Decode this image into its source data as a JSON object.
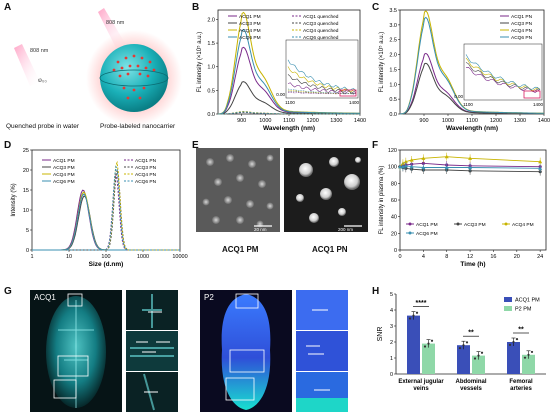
{
  "panel_letters": {
    "a": "A",
    "b": "B",
    "c": "C",
    "d": "D",
    "e": "E",
    "f": "F",
    "g": "G",
    "h": "H"
  },
  "panelA": {
    "laser1": "808 nm",
    "laser2": "808 nm",
    "molecules": "ⱷ₀₀",
    "caption_left": "Quenched probe in water",
    "caption_right": "Probe-labeled nanocarrier"
  },
  "colors": {
    "acq1": "#7a2a8a",
    "acq3": "#444444",
    "acq4": "#c8b400",
    "acq6": "#3a8fb0",
    "acq1_pn": "#9b5bb0",
    "pink_box": "#d81b60",
    "bar_acq1": "#3a4fb8",
    "bar_p2": "#8fd8a8",
    "sphere": "#1ab0b8"
  },
  "fl_axis": {
    "ylabel": "FL intensity (×10⁵ a.u.)",
    "xlabel": "Wavelength (nm)"
  },
  "chart_data": [
    {
      "panel": "B",
      "type": "line",
      "xlabel": "Wavelength (nm)",
      "ylabel": "FL intensity (×10⁵ a.u.)",
      "xlim": [
        800,
        1400
      ],
      "ylim": [
        0,
        2.2
      ],
      "xticks": [
        900,
        1000,
        1100,
        1200,
        1300,
        1400
      ],
      "yticks": [
        0.0,
        0.5,
        1.0,
        1.5,
        2.0
      ],
      "inset": {
        "xticks": [
          1100,
          1400
        ],
        "ytick": "0.00"
      },
      "series": [
        {
          "name": "ACQ1 PM",
          "peak": 1.28
        },
        {
          "name": "ACQ3 PM",
          "peak": 0.62
        },
        {
          "name": "ACQ4 PM",
          "peak": 1.95
        },
        {
          "name": "ACQ6 PM",
          "peak": 1.62
        },
        {
          "name": "ACQ1 quenched",
          "peak": 0.04
        },
        {
          "name": "ACQ3 quenched",
          "peak": 0.03
        },
        {
          "name": "ACQ4 quenched",
          "peak": 0.05
        },
        {
          "name": "ACQ6 quenched",
          "peak": 0.04
        }
      ]
    },
    {
      "panel": "C",
      "type": "line",
      "xlabel": "Wavelength (nm)",
      "ylabel": "FL intensity (×10⁵ a.u.)",
      "xlim": [
        800,
        1400
      ],
      "ylim": [
        0,
        3.5
      ],
      "xticks": [
        900,
        1000,
        1100,
        1200,
        1300,
        1400
      ],
      "yticks": [
        0.0,
        0.5,
        1.0,
        1.5,
        2.0,
        2.5,
        3.0,
        3.5
      ],
      "inset": {
        "xticks": [
          1100,
          1400
        ],
        "ytick": "0.00"
      },
      "series": [
        {
          "name": "ACQ1 PN",
          "peak": 1.85
        },
        {
          "name": "ACQ3 PN",
          "peak": 1.55
        },
        {
          "name": "ACQ4 PN",
          "peak": 3.15
        },
        {
          "name": "ACQ6 PN",
          "peak": 2.95
        }
      ]
    },
    {
      "panel": "D",
      "type": "line",
      "xlabel": "Size (d.nm)",
      "ylabel": "Intensity (%)",
      "xscale": "log",
      "xlim": [
        1,
        10000
      ],
      "ylim": [
        0,
        25
      ],
      "xticks": [
        "1",
        "10",
        "100",
        "1000",
        "10000"
      ],
      "yticks": [
        0,
        5,
        10,
        15,
        20,
        25
      ],
      "series": [
        {
          "name": "ACQ1 PM",
          "peak_x": 24,
          "peak_y": 15
        },
        {
          "name": "ACQ3 PM",
          "peak_x": 26,
          "peak_y": 13.5
        },
        {
          "name": "ACQ4 PM",
          "peak_x": 25,
          "peak_y": 14.5
        },
        {
          "name": "ACQ6 PM",
          "peak_x": 25,
          "peak_y": 14
        },
        {
          "name": "ACQ1 PN",
          "peak_x": 185,
          "peak_y": 19
        },
        {
          "name": "ACQ3 PN",
          "peak_x": 200,
          "peak_y": 20
        },
        {
          "name": "ACQ4 PN",
          "peak_x": 195,
          "peak_y": 22
        },
        {
          "name": "ACQ6 PN",
          "peak_x": 190,
          "peak_y": 21
        }
      ]
    },
    {
      "panel": "F",
      "type": "line",
      "xlabel": "Time (h)",
      "ylabel": "FL intensity in plasma (%)",
      "xlim": [
        0,
        25
      ],
      "ylim": [
        0,
        120
      ],
      "xticks": [
        0,
        4,
        8,
        12,
        16,
        20,
        24
      ],
      "yticks": [
        0,
        20,
        40,
        60,
        80,
        100,
        120
      ],
      "x": [
        0,
        0.5,
        1,
        2,
        4,
        8,
        12,
        24
      ],
      "series": [
        {
          "name": "ACQ1 PM",
          "values": [
            100,
            101,
            102,
            103,
            104,
            102,
            101,
            100
          ]
        },
        {
          "name": "ACQ3 PM",
          "values": [
            100,
            99,
            98,
            97,
            96,
            96,
            95,
            94
          ]
        },
        {
          "name": "ACQ4 PM",
          "values": [
            100,
            104,
            106,
            108,
            110,
            112,
            110,
            106
          ]
        },
        {
          "name": "ACQ6 PM",
          "values": [
            100,
            100,
            101,
            100,
            99,
            99,
            99,
            98
          ]
        }
      ]
    },
    {
      "panel": "H",
      "type": "bar",
      "ylabel": "SNR",
      "ylim": [
        0,
        5
      ],
      "yticks": [
        0,
        1,
        2,
        3,
        4,
        5
      ],
      "categories": [
        "External jugular veins",
        "Abdominal vessels",
        "Femoral arteries"
      ],
      "series": [
        {
          "name": "ACQ1 PM",
          "values": [
            3.65,
            1.8,
            2.0
          ]
        },
        {
          "name": "P2 PM",
          "values": [
            1.9,
            1.15,
            1.2
          ]
        }
      ],
      "significance": [
        "****",
        "**",
        "**"
      ]
    }
  ],
  "legendB": [
    "ACQ1 PM",
    "ACQ3 PM",
    "ACQ4 PM",
    "ACQ6 PM",
    "ACQ1 quenched",
    "ACQ3 quenched",
    "ACQ4 quenched",
    "ACQ6 quenched"
  ],
  "legendC": [
    "ACQ1 PN",
    "ACQ3 PN",
    "ACQ4 PN",
    "ACQ6 PN"
  ],
  "legendD": [
    "ACQ1 PM",
    "ACQ3 PM",
    "ACQ4 PM",
    "ACQ6 PM",
    "ACQ1 PN",
    "ACQ3 PN",
    "ACQ4 PN",
    "ACQ6 PN"
  ],
  "legendF": [
    "ACQ1 PM",
    "ACQ3 PM",
    "ACQ4 PM",
    "ACQ6 PM"
  ],
  "legendH": [
    "ACQ1 PM",
    "P2 PM"
  ],
  "panelE": {
    "scale_left": "20 nm",
    "scale_right": "200 nm",
    "label_left": "ACQ1 PM",
    "label_right": "ACQ1 PN"
  },
  "panelG": {
    "label_left": "ACQ1",
    "label_right": "P2"
  }
}
